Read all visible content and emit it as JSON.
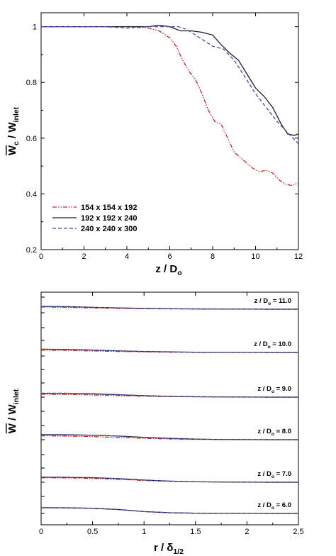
{
  "chart_data": [
    {
      "type": "line",
      "xlabel": "z / D",
      "xlabel_sub": "o",
      "ylabel": "W",
      "ylabel_sub": "c",
      "ylabel_mid": " / W",
      "ylabel_sub2": "inlet",
      "xlim": [
        0,
        12
      ],
      "ylim": [
        0.2,
        1.05
      ],
      "xticks": [
        "0",
        "2",
        "4",
        "6",
        "8",
        "10",
        "12"
      ],
      "yticks": [
        "0.2",
        "0.4",
        "0.6",
        "0.8",
        "1"
      ],
      "legend_position": "lower-left",
      "series": [
        {
          "name": "154 x 154 x 192",
          "color": "#cc2222",
          "dash": "dash-dot-dot",
          "x": [
            0,
            1,
            2,
            3,
            4,
            5,
            5.5,
            6,
            6.3,
            6.6,
            6.9,
            7.2,
            7.5,
            7.8,
            8.1,
            8.4,
            8.7,
            9,
            9.3,
            9.6,
            9.9,
            10.2,
            10.5,
            10.8,
            11.1,
            11.4,
            11.7,
            12
          ],
          "y": [
            1.0,
            1.0,
            1.0,
            1.0,
            1.0,
            0.995,
            0.985,
            0.96,
            0.93,
            0.88,
            0.84,
            0.81,
            0.76,
            0.7,
            0.66,
            0.65,
            0.6,
            0.55,
            0.53,
            0.51,
            0.49,
            0.48,
            0.485,
            0.475,
            0.45,
            0.435,
            0.43,
            0.44
          ]
        },
        {
          "name": "192 x 192 x 240",
          "color": "#1a1a2e",
          "dash": "solid",
          "x": [
            0,
            1,
            2,
            3,
            4,
            5,
            5.5,
            6,
            6.5,
            7,
            7.5,
            8,
            8.4,
            8.8,
            9.2,
            9.6,
            10,
            10.4,
            10.8,
            11.2,
            11.5,
            11.8,
            12
          ],
          "y": [
            1.0,
            1.0,
            1.0,
            1.0,
            1.0,
            1.0,
            1.005,
            1.0,
            0.985,
            0.985,
            0.98,
            0.97,
            0.935,
            0.905,
            0.88,
            0.83,
            0.78,
            0.75,
            0.71,
            0.65,
            0.615,
            0.61,
            0.615
          ]
        },
        {
          "name": "240 x 240 x 300",
          "color": "#4b4ba8",
          "dash": "dashed",
          "x": [
            0,
            1,
            2,
            3,
            4,
            5,
            5.5,
            6,
            6.4,
            6.8,
            7.2,
            7.6,
            8,
            8.5,
            9,
            9.5,
            10,
            10.5,
            11,
            11.5,
            12
          ],
          "y": [
            1.0,
            1.0,
            1.0,
            1.0,
            0.995,
            1.0,
            1.0,
            1.0,
            1.0,
            0.99,
            0.97,
            0.95,
            0.93,
            0.92,
            0.88,
            0.82,
            0.76,
            0.71,
            0.66,
            0.62,
            0.58
          ]
        }
      ]
    },
    {
      "type": "line",
      "xlabel": "r / δ",
      "xlabel_sub": "1/2",
      "ylabel": "W",
      "ylabel_mid": " / W",
      "ylabel_sub2": "inlet",
      "xlim": [
        0,
        2.5
      ],
      "xticks": [
        "0",
        "0.5",
        "1",
        "1.5",
        "2",
        "2.5"
      ],
      "profiles": [
        {
          "label": "z / D",
          "label_sub": "o",
          "label_value": " = 11.0",
          "base": 0,
          "r": [
            0,
            0.25,
            0.5,
            0.75,
            1,
            1.25,
            1.5,
            1.75,
            2,
            2.25,
            2.5
          ],
          "curves": [
            [
              0.22,
              0.18,
              0.13,
              0.08,
              0.05,
              0.03,
              0.02,
              0.01,
              0.005,
              0.0,
              0.0
            ],
            [
              0.28,
              0.25,
              0.19,
              0.13,
              0.08,
              0.05,
              0.03,
              0.015,
              0.005,
              0.0,
              0.0
            ],
            [
              0.26,
              0.23,
              0.18,
              0.13,
              0.08,
              0.05,
              0.03,
              0.015,
              0.005,
              0.0,
              0.0
            ]
          ]
        },
        {
          "label": "z / D",
          "label_sub": "o",
          "label_value": " = 10.0",
          "base": 1,
          "r": [
            0,
            0.25,
            0.5,
            0.75,
            1,
            1.25,
            1.5,
            1.75,
            2,
            2.25,
            2.5
          ],
          "curves": [
            [
              0.22,
              0.2,
              0.15,
              0.1,
              0.06,
              0.03,
              0.02,
              0.01,
              0.005,
              0.0,
              0.0
            ],
            [
              0.33,
              0.3,
              0.24,
              0.16,
              0.1,
              0.06,
              0.03,
              0.015,
              0.005,
              0.0,
              0.0
            ],
            [
              0.31,
              0.29,
              0.22,
              0.15,
              0.09,
              0.05,
              0.03,
              0.015,
              0.005,
              0.0,
              0.0
            ]
          ]
        },
        {
          "label": "z / D",
          "label_sub": "o",
          "label_value": " = 9.0",
          "base": 2,
          "r": [
            0,
            0.25,
            0.5,
            0.75,
            1,
            1.25,
            1.5,
            1.75,
            2,
            2.25,
            2.5
          ],
          "curves": [
            [
              0.28,
              0.26,
              0.22,
              0.15,
              0.09,
              0.05,
              0.03,
              0.015,
              0.005,
              0.0,
              0.0
            ],
            [
              0.38,
              0.37,
              0.32,
              0.24,
              0.15,
              0.08,
              0.04,
              0.02,
              0.005,
              0.0,
              0.0
            ],
            [
              0.4,
              0.39,
              0.35,
              0.25,
              0.14,
              0.07,
              0.035,
              0.015,
              0.005,
              0.0,
              0.0
            ]
          ]
        },
        {
          "label": "z / D",
          "label_sub": "o",
          "label_value": " = 8.0",
          "base": 3,
          "r": [
            0,
            0.25,
            0.5,
            0.75,
            1,
            1.25,
            1.5,
            1.75,
            2,
            2.25,
            2.5
          ],
          "curves": [
            [
              0.38,
              0.36,
              0.3,
              0.22,
              0.13,
              0.07,
              0.03,
              0.015,
              0.005,
              0.0,
              0.0
            ],
            [
              0.5,
              0.49,
              0.45,
              0.36,
              0.24,
              0.13,
              0.06,
              0.02,
              0.005,
              0.0,
              0.0
            ],
            [
              0.47,
              0.46,
              0.43,
              0.35,
              0.22,
              0.11,
              0.05,
              0.02,
              0.005,
              0.0,
              0.0
            ]
          ]
        },
        {
          "label": "z / D",
          "label_sub": "o",
          "label_value": " = 7.0",
          "base": 4,
          "r": [
            0,
            0.25,
            0.5,
            0.75,
            1,
            1.25,
            1.5,
            1.75,
            2,
            2.25,
            2.5
          ],
          "curves": [
            [
              0.44,
              0.43,
              0.38,
              0.29,
              0.17,
              0.09,
              0.04,
              0.015,
              0.005,
              0.0,
              0.0
            ],
            [
              0.5,
              0.49,
              0.45,
              0.36,
              0.22,
              0.11,
              0.05,
              0.02,
              0.005,
              0.0,
              0.0
            ],
            [
              0.51,
              0.5,
              0.46,
              0.37,
              0.22,
              0.11,
              0.05,
              0.02,
              0.005,
              0.0,
              0.0
            ]
          ]
        },
        {
          "label": "z / D",
          "label_sub": "o",
          "label_value": " = 6.0",
          "base": 5,
          "r": [
            0,
            0.25,
            0.5,
            0.75,
            1,
            1.25,
            1.5,
            1.75,
            2,
            2.25,
            2.5
          ],
          "curves": [
            [
              0.55,
              0.54,
              0.5,
              0.38,
              0.18,
              0.07,
              0.03,
              0.01,
              0.005,
              0.0,
              0.0
            ],
            [
              0.57,
              0.56,
              0.52,
              0.39,
              0.18,
              0.07,
              0.03,
              0.01,
              0.005,
              0.0,
              0.0
            ],
            [
              0.56,
              0.55,
              0.51,
              0.38,
              0.18,
              0.07,
              0.03,
              0.01,
              0.005,
              0.0,
              0.0
            ]
          ]
        }
      ]
    }
  ]
}
